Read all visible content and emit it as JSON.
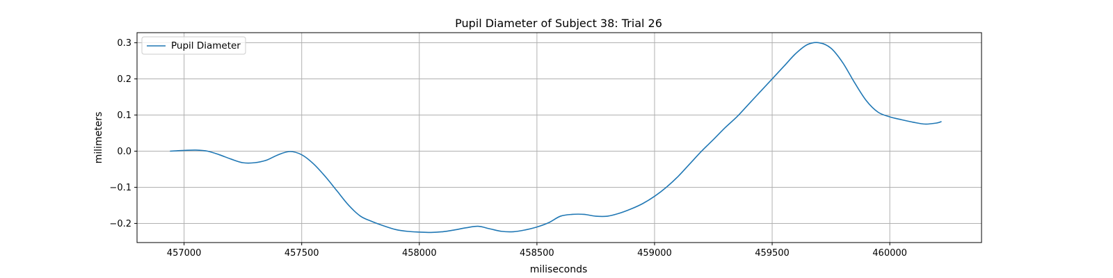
{
  "chart_data": {
    "type": "line",
    "title": "Pupil Diameter of Subject 38: Trial 26",
    "xlabel": "miliseconds",
    "ylabel": "milimeters",
    "xlim": [
      456800,
      460390
    ],
    "ylim": [
      -0.253,
      0.328
    ],
    "xticks": [
      457000,
      457500,
      458000,
      458500,
      459000,
      459500,
      460000
    ],
    "xtick_labels": [
      "457000",
      "457500",
      "458000",
      "458500",
      "459000",
      "459500",
      "460000"
    ],
    "yticks": [
      -0.2,
      -0.1,
      0.0,
      0.1,
      0.2,
      0.3
    ],
    "ytick_labels": [
      "−0.2",
      "−0.1",
      "0.0",
      "0.1",
      "0.2",
      "0.3"
    ],
    "grid": true,
    "legend_position": "upper-left",
    "series": [
      {
        "name": "Pupil Diameter",
        "color": "#1f77b4",
        "x": [
          456940,
          457000,
          457050,
          457100,
          457150,
          457200,
          457250,
          457300,
          457350,
          457400,
          457450,
          457500,
          457550,
          457600,
          457650,
          457700,
          457750,
          457800,
          457850,
          457900,
          457950,
          458000,
          458050,
          458100,
          458150,
          458200,
          458250,
          458300,
          458350,
          458400,
          458450,
          458500,
          458550,
          458600,
          458650,
          458700,
          458750,
          458800,
          458850,
          458900,
          458950,
          459000,
          459050,
          459100,
          459150,
          459200,
          459250,
          459300,
          459350,
          459400,
          459450,
          459500,
          459550,
          459600,
          459650,
          459700,
          459750,
          459800,
          459850,
          459900,
          459950,
          460000,
          460050,
          460100,
          460150,
          460200,
          460220
        ],
        "y": [
          0.0,
          0.002,
          0.003,
          0.0,
          -0.01,
          -0.022,
          -0.032,
          -0.032,
          -0.025,
          -0.01,
          -0.001,
          -0.01,
          -0.035,
          -0.07,
          -0.11,
          -0.15,
          -0.18,
          -0.195,
          -0.207,
          -0.217,
          -0.222,
          -0.224,
          -0.225,
          -0.223,
          -0.218,
          -0.212,
          -0.208,
          -0.215,
          -0.222,
          -0.223,
          -0.218,
          -0.21,
          -0.198,
          -0.18,
          -0.175,
          -0.175,
          -0.18,
          -0.18,
          -0.172,
          -0.16,
          -0.145,
          -0.125,
          -0.1,
          -0.07,
          -0.035,
          0.0,
          0.032,
          0.065,
          0.095,
          0.13,
          0.165,
          0.2,
          0.235,
          0.27,
          0.295,
          0.3,
          0.285,
          0.245,
          0.19,
          0.14,
          0.108,
          0.095,
          0.087,
          0.08,
          0.075,
          0.078,
          0.082
        ]
      }
    ]
  }
}
